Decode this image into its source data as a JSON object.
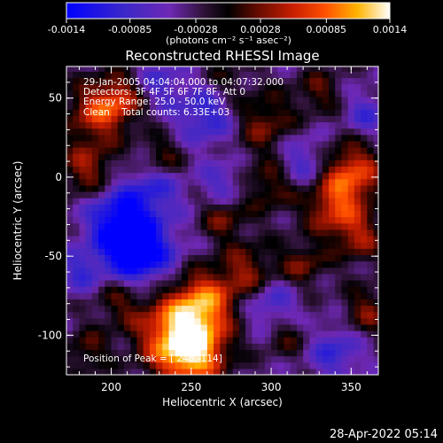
{
  "chart_data": {
    "type": "heatmap",
    "title": "Reconstructed RHESSI Image",
    "xlabel": "Heliocentric X (arcsec)",
    "ylabel": "Heliocentric Y (arcsec)",
    "xlim": [
      172,
      367
    ],
    "ylim": [
      -125,
      70
    ],
    "x_ticks": [
      200,
      250,
      300,
      350
    ],
    "y_ticks": [
      -100,
      -50,
      0,
      50
    ],
    "colorbar": {
      "range": [
        -0.0014,
        0.0014
      ],
      "tick_values": [
        -0.0014,
        -0.00085,
        -0.00028,
        0.00028,
        0.00085,
        0.0014
      ],
      "tick_labels": [
        "-0.0014",
        "-0.00085",
        "-0.00028",
        "0.00028",
        "0.00085",
        "0.0014"
      ],
      "units_label": "(photons cm⁻² s⁻¹ asec⁻²)",
      "colors": [
        "#0000ff",
        "#3c28c8",
        "#6e28b4",
        "#32143c",
        "#000000",
        "#5a0a00",
        "#c81e00",
        "#ff5000",
        "#ffb400",
        "#ffffff"
      ]
    },
    "annotations": {
      "line1": "29-Jan-2005 04:04:04.000 to 04:07:32.000",
      "line2": "Detectors: 3F 4F 5F 6F 7F 8F, Att 0",
      "line3": "Energy Range: 25.0 - 50.0 keV",
      "line4": "Clean    Total counts: 6.33E+03",
      "peak": "Position of Peak = [ 248,-114]"
    },
    "peak_position": [
      248,
      -114
    ],
    "timestamp": "28-Apr-2022 05:14"
  }
}
